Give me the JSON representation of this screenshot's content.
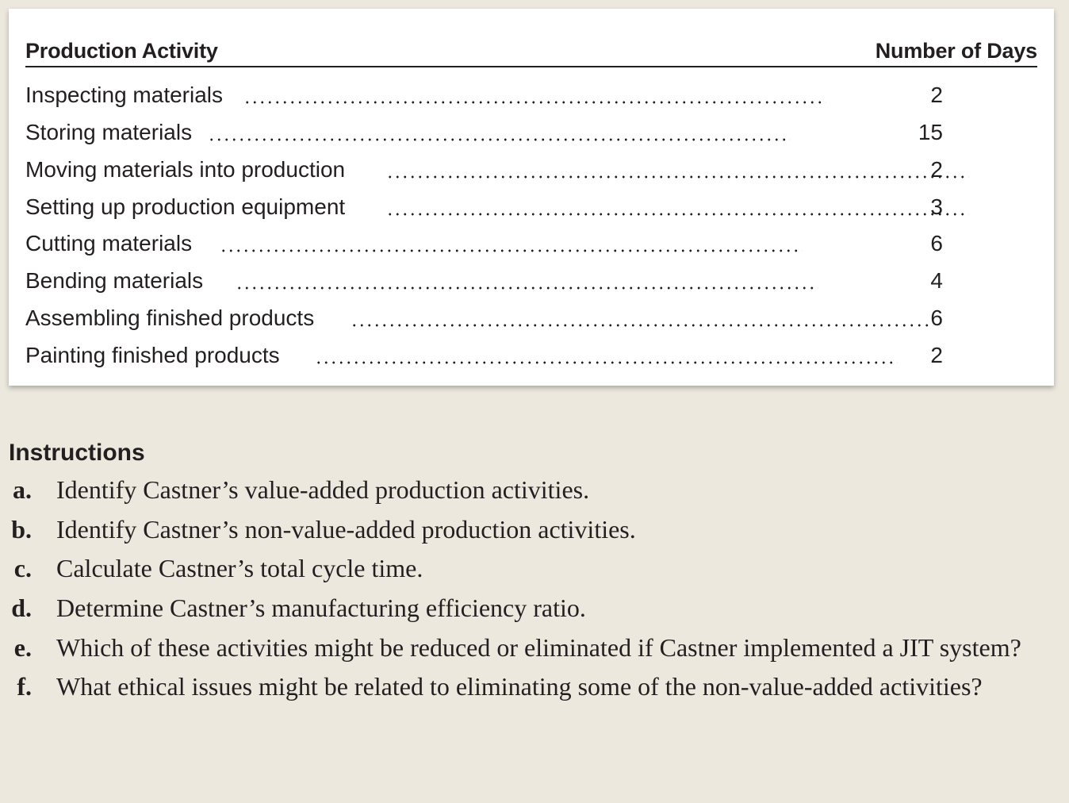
{
  "table": {
    "header_activity": "Production Activity",
    "header_days": "Number of Days",
    "rows": [
      {
        "activity": "Inspecting materials",
        "days": "2"
      },
      {
        "activity": "Storing materials",
        "days": "15"
      },
      {
        "activity": "Moving materials into production",
        "days": "2"
      },
      {
        "activity": "Setting up production equipment",
        "days": "3"
      },
      {
        "activity": "Cutting materials",
        "days": "6"
      },
      {
        "activity": "Bending materials",
        "days": "4"
      },
      {
        "activity": "Assembling finished products",
        "days": "6"
      },
      {
        "activity": "Painting finished products",
        "days": "2"
      }
    ]
  },
  "instructions": {
    "title": "Instructions",
    "items": [
      {
        "letter": "a.",
        "text": "Identify Castner’s value-added production activities."
      },
      {
        "letter": "b.",
        "text": "Identify Castner’s non-value-added production activities."
      },
      {
        "letter": "c.",
        "text": "Calculate Castner’s total cycle time."
      },
      {
        "letter": "d.",
        "text": "Determine Castner’s manufacturing efficiency ratio."
      },
      {
        "letter": "e.",
        "text": "Which of these activities might be reduced or eliminated if Castner implemented a JIT system?"
      },
      {
        "letter": "f.",
        "text": "What ethical issues might be related to eliminating some of the non-value-added activities?"
      }
    ]
  }
}
